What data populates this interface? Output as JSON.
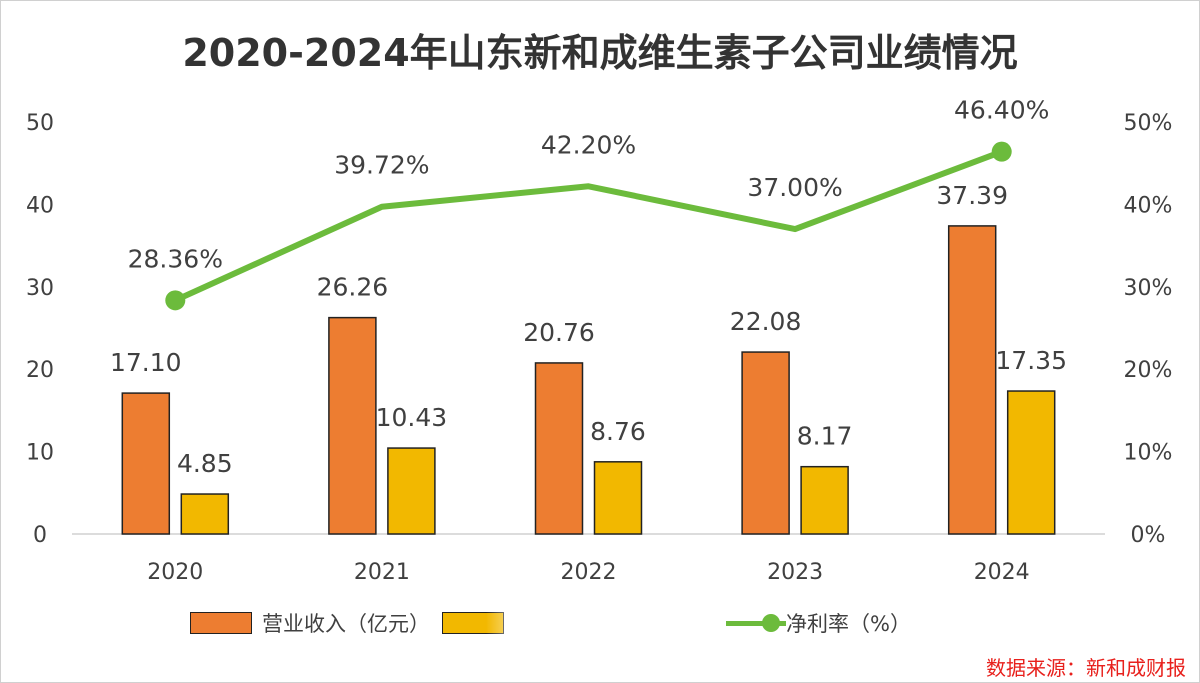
{
  "chart_data": {
    "type": "bar",
    "title": "2020-2024年山东新和成维生素子公司业绩情况",
    "categories": [
      "2020",
      "2021",
      "2022",
      "2023",
      "2024"
    ],
    "series": [
      {
        "name": "营业收入（亿元）",
        "kind": "bar",
        "axis": "left",
        "color": "#ed7d31",
        "values": [
          17.1,
          26.26,
          20.76,
          22.08,
          37.39
        ],
        "labels": [
          "17.10",
          "26.26",
          "20.76",
          "22.08",
          "37.39"
        ]
      },
      {
        "name": "",
        "kind": "bar",
        "axis": "left",
        "color": "#f2b800",
        "values": [
          4.85,
          10.43,
          8.76,
          8.17,
          17.35
        ],
        "labels": [
          "4.85",
          "10.43",
          "8.76",
          "8.17",
          "17.35"
        ]
      },
      {
        "name": "净利率（%）",
        "kind": "line",
        "axis": "right",
        "color": "#6cbb3c",
        "values": [
          28.36,
          39.72,
          42.2,
          37.0,
          46.4
        ],
        "labels": [
          "28.36%",
          "39.72%",
          "42.20%",
          "37.00%",
          "46.40%"
        ]
      }
    ],
    "ylim": [
      0,
      50
    ],
    "y_ticks": [
      "0",
      "10",
      "20",
      "30",
      "40",
      "50"
    ],
    "y2lim": [
      0,
      50
    ],
    "y2_ticks": [
      "0%",
      "10%",
      "20%",
      "30%",
      "40%",
      "50%"
    ],
    "legend_position": "bottom",
    "source": "数据来源：新和成财报"
  }
}
